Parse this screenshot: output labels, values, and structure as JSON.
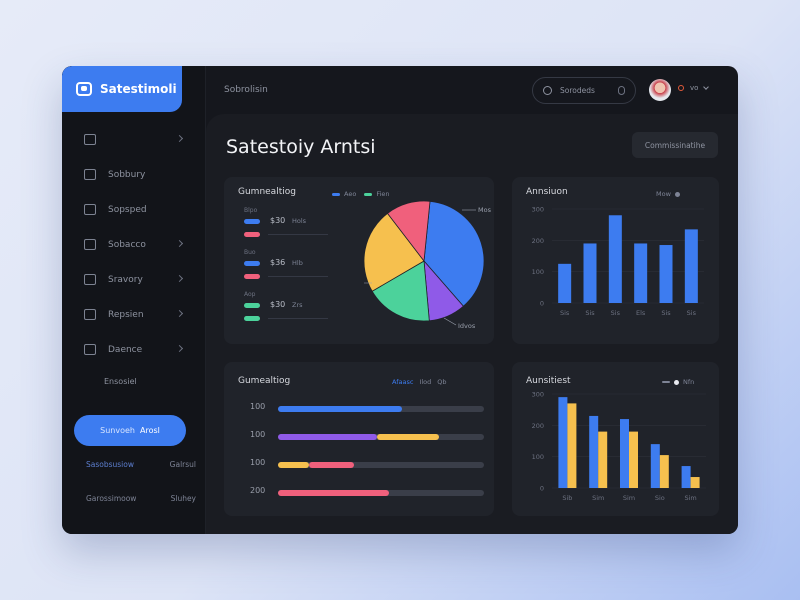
{
  "brand": {
    "name": "Satestimoli"
  },
  "sidebar": {
    "items": [
      {
        "label": "",
        "icon": "grid-icon",
        "chevron": true
      },
      {
        "label": "Sobbury",
        "icon": "bell-icon",
        "chevron": false
      },
      {
        "label": "Sopsped",
        "icon": "list-icon",
        "chevron": false
      },
      {
        "label": "Sobacco",
        "icon": "wallet-icon",
        "chevron": true
      },
      {
        "label": "Sravory",
        "icon": "chart-icon",
        "chevron": true
      },
      {
        "label": "Repsien",
        "icon": "user-icon",
        "chevron": true
      },
      {
        "label": "Daence",
        "icon": "settings-icon",
        "chevron": true
      }
    ],
    "sub_label": "Ensosiel",
    "cta": {
      "label": "Sunvoeh",
      "suffix": "Arosl"
    },
    "footer_rows": [
      {
        "left": "Sasobsusiow",
        "right": "Galrsul"
      },
      {
        "left": "Garossimoow",
        "right": "Sluhey"
      }
    ]
  },
  "header": {
    "title": "Sobrolisin",
    "search_placeholder": "Sorodeds",
    "profile_text": "vo"
  },
  "main": {
    "title": "Satestoiy Arntsi",
    "export_label": "Commissinatihe"
  },
  "cards": {
    "pie": {
      "title": "Gumnealtiog",
      "legend": [
        "Aeo",
        "Fien"
      ],
      "rows": [
        {
          "caption": "Blpo",
          "value": "$30",
          "sub": "Hols"
        },
        {
          "caption": "Buo",
          "value": "$36",
          "sub": "Hlb"
        },
        {
          "caption": "Aop",
          "value": "$30",
          "sub": "Zrs"
        }
      ],
      "callouts": [
        "Mos",
        "Idvos"
      ]
    },
    "bar": {
      "title": "Annsiuon",
      "legend": "Mow"
    },
    "hbar": {
      "title": "Gumealtiog",
      "legend": [
        "Afaasc",
        "Ilod",
        "Qb"
      ]
    },
    "group": {
      "title": "Aunsitiest",
      "legend": "Nfn"
    }
  },
  "colors": {
    "accent": "#3d7cf0",
    "pink": "#f0607c",
    "yellow": "#f6c04e",
    "green": "#4cd29b",
    "purple": "#8f5ae8"
  },
  "chart_data": [
    {
      "type": "pie",
      "title": "Gumnealtiog",
      "slices": [
        {
          "label": "Mos",
          "value": 37,
          "color": "#3d7cf0"
        },
        {
          "label": "Idvos",
          "value": 10,
          "color": "#8f5ae8"
        },
        {
          "label": "",
          "value": 18,
          "color": "#4cd29b"
        },
        {
          "label": "",
          "value": 23,
          "color": "#f6c04e"
        },
        {
          "label": "",
          "value": 12,
          "color": "#f0607c"
        }
      ]
    },
    {
      "type": "bar",
      "title": "Annsiuon",
      "categories": [
        "Sis",
        "Sis",
        "Sis",
        "Els",
        "Sis",
        "Sis"
      ],
      "values": [
        125,
        190,
        280,
        190,
        185,
        235
      ],
      "y_ticks": [
        "0",
        "100",
        "200",
        "300"
      ],
      "ylim": [
        0,
        300
      ],
      "color": "#3d7cf0"
    },
    {
      "type": "bar",
      "title": "Gumealtiog",
      "orientation": "horizontal",
      "categories": [
        "100",
        "100",
        "100",
        "200"
      ],
      "series": [
        {
          "values": [
            0.6,
            0,
            0,
            0
          ],
          "color": "#3d7cf0"
        },
        {
          "values": [
            0,
            0.48,
            0,
            0
          ],
          "color": "#8f5ae8"
        },
        {
          "values": [
            0,
            0.3,
            0.15,
            0
          ],
          "color": "#f6c04e"
        },
        {
          "values": [
            0,
            0,
            0.22,
            0.54
          ],
          "color": "#f0607c"
        }
      ],
      "xlim": [
        0,
        1
      ]
    },
    {
      "type": "bar",
      "title": "Aunsitiest",
      "categories": [
        "Sib",
        "Sim",
        "Sim",
        "Sio",
        "Sim"
      ],
      "series": [
        {
          "values": [
            290,
            230,
            220,
            140,
            70
          ],
          "color": "#3d7cf0"
        },
        {
          "values": [
            270,
            180,
            180,
            105,
            35
          ],
          "color": "#f6c04e"
        }
      ],
      "y_ticks": [
        "0",
        "100",
        "200",
        "300"
      ],
      "ylim": [
        0,
        300
      ]
    }
  ]
}
